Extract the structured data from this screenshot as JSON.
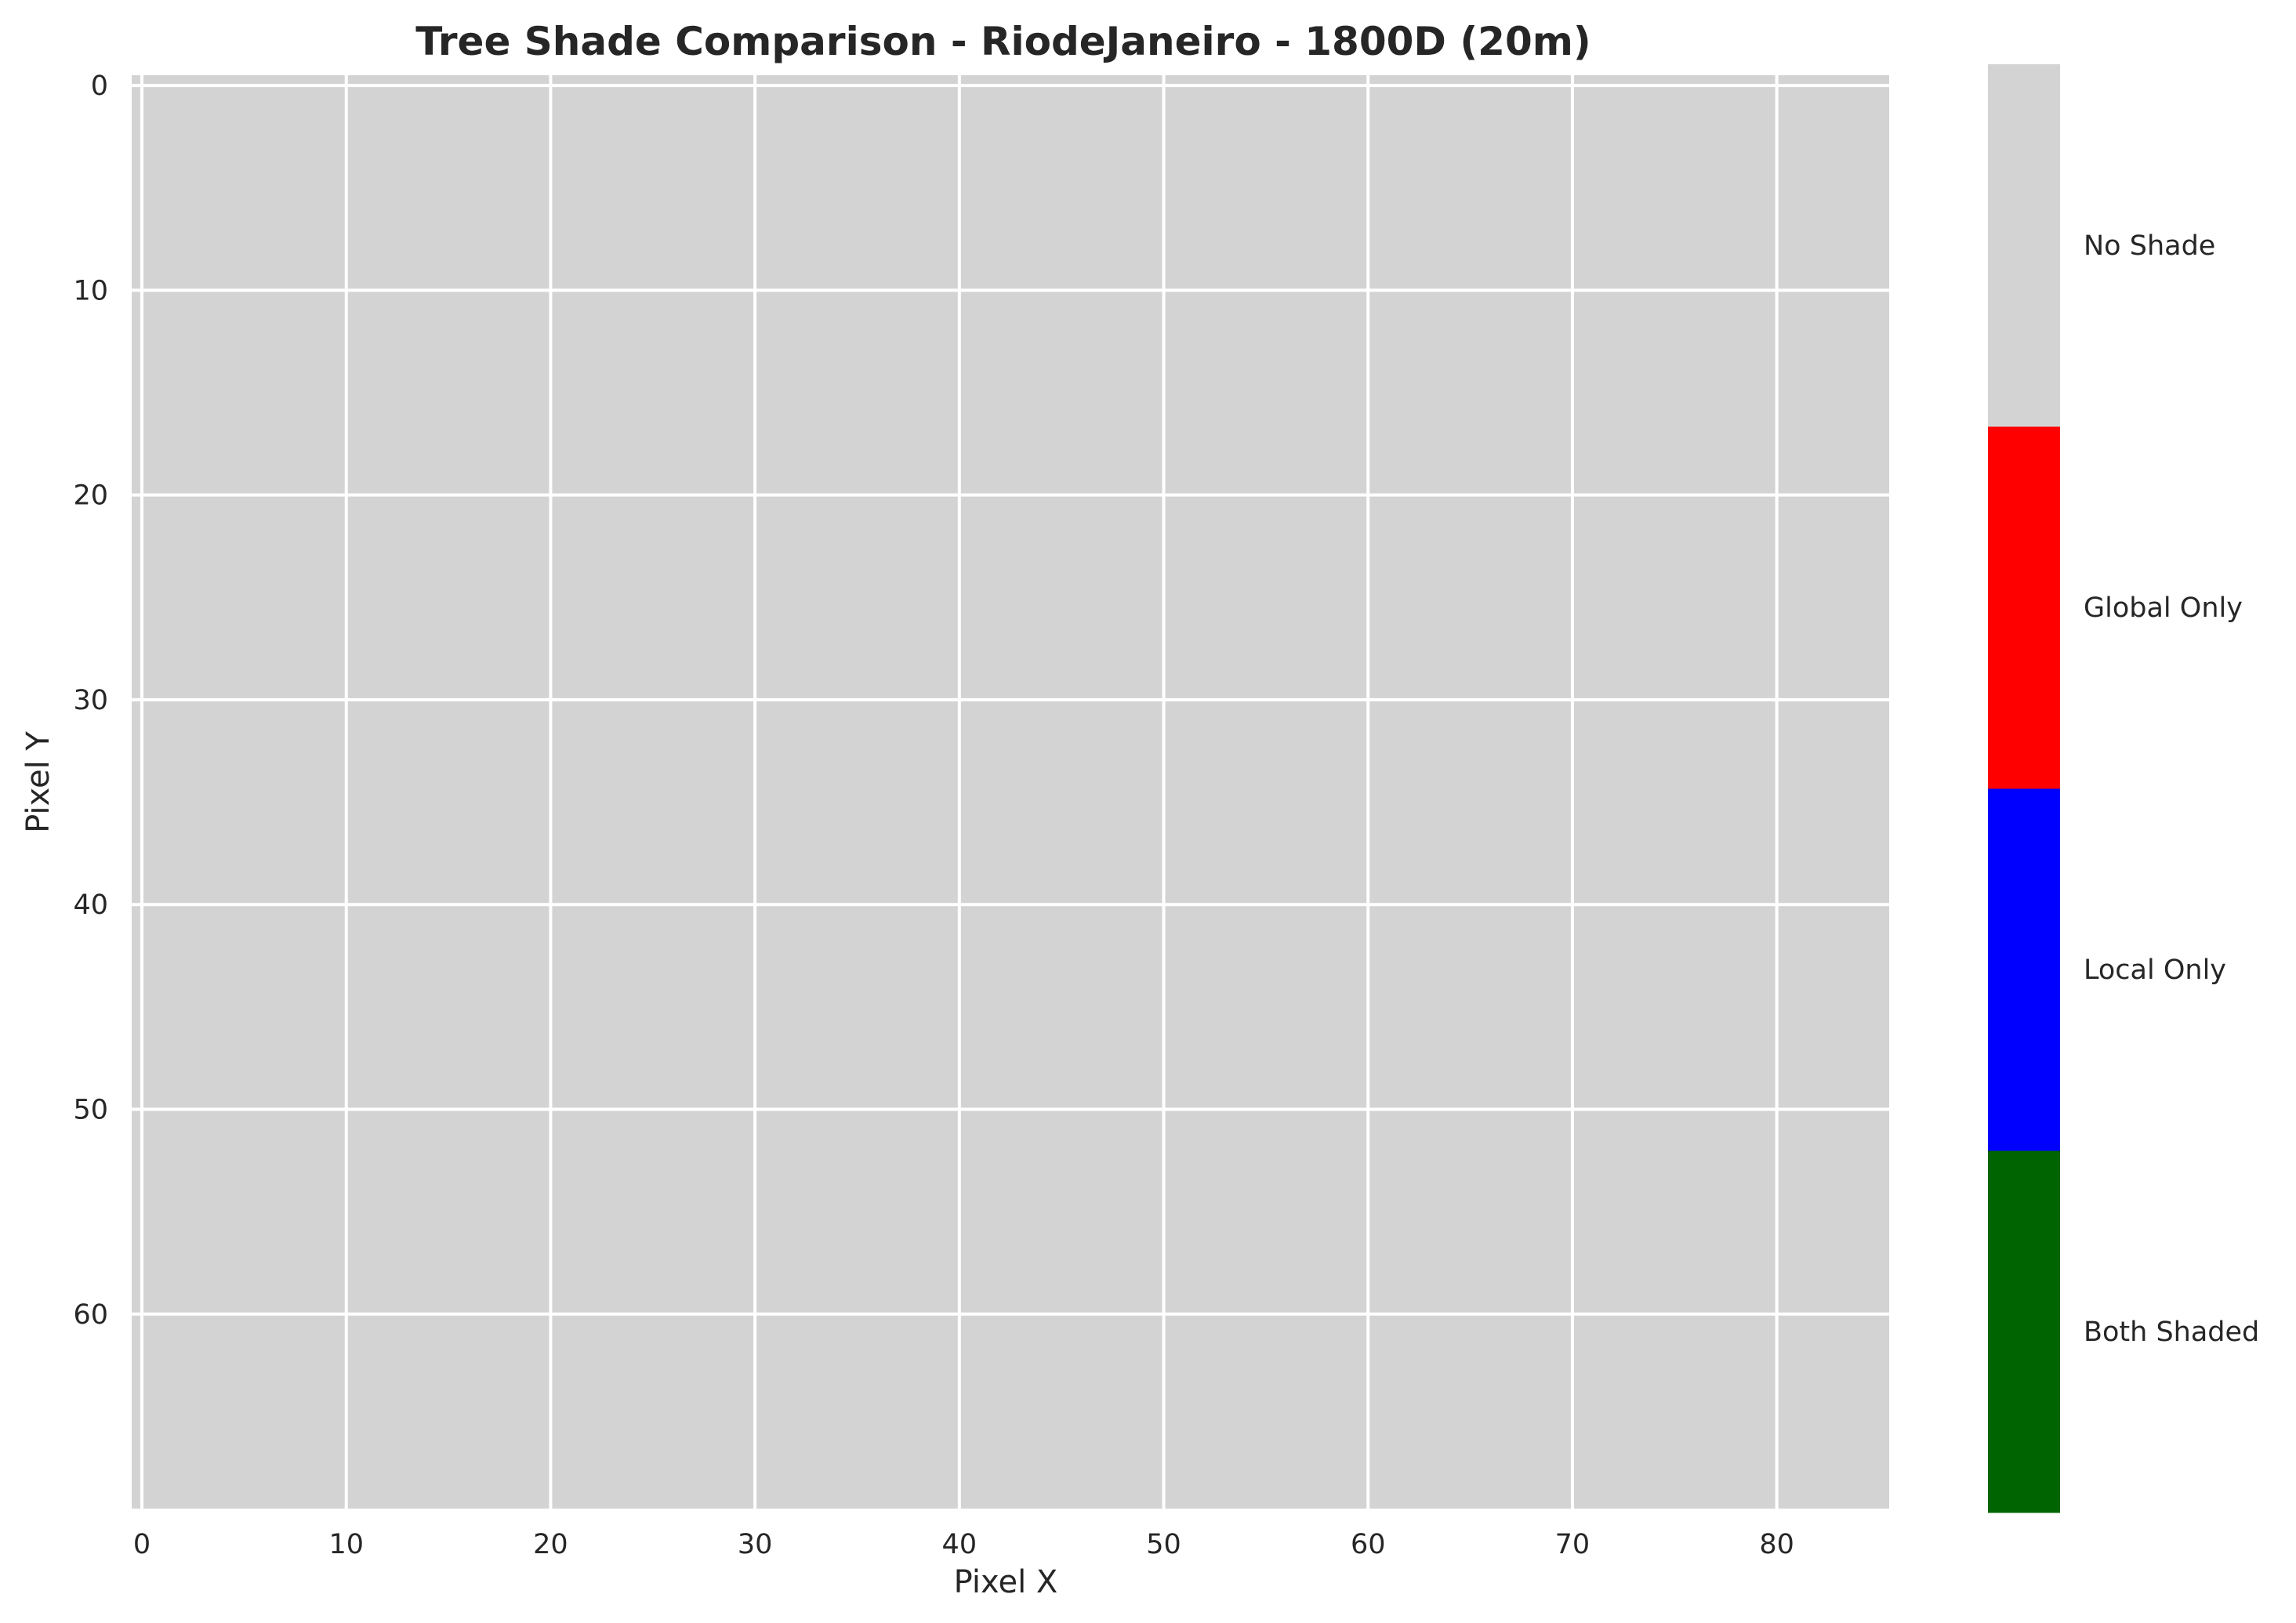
{
  "chart_data": {
    "type": "heatmap",
    "title": "Tree Shade Comparison - RiodeJaneiro - 1800D (20m)",
    "xlabel": "Pixel X",
    "ylabel": "Pixel Y",
    "xlim": [
      -0.5,
      85.5
    ],
    "ylim": [
      69.5,
      -0.5
    ],
    "y_inverted": true,
    "x_ticks": [
      0,
      10,
      20,
      30,
      40,
      50,
      60,
      70,
      80
    ],
    "y_ticks": [
      0,
      10,
      20,
      30,
      40,
      50,
      60
    ],
    "grid": true,
    "grid_color": "#ffffff",
    "grid_dimensions": {
      "columns": 86,
      "rows": 70
    },
    "fill_category": "No Shade",
    "categories": [
      {
        "label": "Both Shaded",
        "color": "#006400"
      },
      {
        "label": "Local Only",
        "color": "#0000ff"
      },
      {
        "label": "Global Only",
        "color": "#ff0000"
      },
      {
        "label": "No Shade",
        "color": "#d3d3d3"
      }
    ],
    "colorbar_position": "right"
  }
}
